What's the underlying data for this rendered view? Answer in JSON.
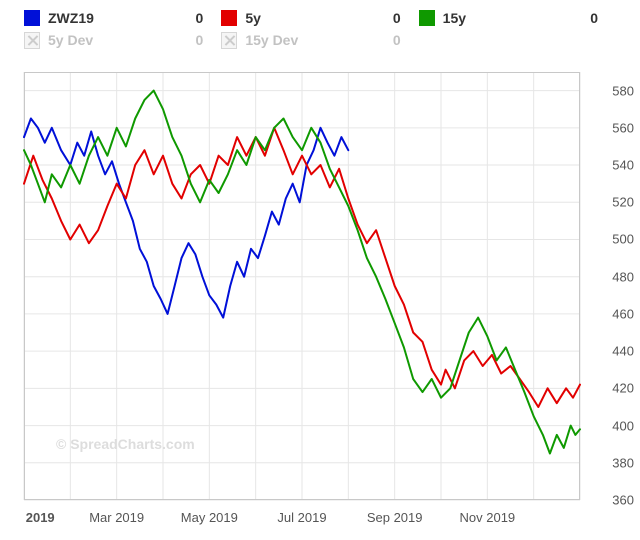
{
  "legend": {
    "row1": [
      {
        "color": "#0010d8",
        "label": "ZWZ19",
        "value": "0",
        "kind": "solid"
      },
      {
        "color": "#e20000",
        "label": "5y",
        "value": "0",
        "kind": "solid"
      },
      {
        "color": "#0f9900",
        "label": "15y",
        "value": "0",
        "kind": "solid"
      }
    ],
    "row2": [
      {
        "label_color": "#c2c2c2",
        "label": "5y Dev",
        "value": "0",
        "kind": "disabled"
      },
      {
        "label_color": "#c2c2c2",
        "label": "15y Dev",
        "value": "0",
        "kind": "disabled"
      }
    ]
  },
  "chart": {
    "background_color": "#ffffff",
    "grid_color": "#e6e6e6",
    "border_color": "#c8c8c8",
    "yaxis": {
      "min": 360,
      "max": 590,
      "ticks": [
        360,
        380,
        400,
        420,
        440,
        460,
        480,
        500,
        520,
        540,
        560,
        580
      ],
      "label_color": "#555555",
      "fontsize": 13
    },
    "xaxis": {
      "min": 0,
      "max": 12,
      "ticks": [
        {
          "x": 0.35,
          "label": "2019",
          "bold": true
        },
        {
          "x": 2,
          "label": "Mar 2019",
          "bold": false
        },
        {
          "x": 4,
          "label": "May 2019",
          "bold": false
        },
        {
          "x": 6,
          "label": "Jul 2019",
          "bold": false
        },
        {
          "x": 8,
          "label": "Sep 2019",
          "bold": false
        },
        {
          "x": 10,
          "label": "Nov 2019",
          "bold": false
        }
      ],
      "grid_at": [
        0,
        1,
        2,
        3,
        4,
        5,
        6,
        7,
        8,
        9,
        10,
        11,
        12
      ],
      "label_color": "#555555",
      "fontsize": 13
    },
    "series": [
      {
        "name": "ZWZ19",
        "color": "#0010d8",
        "width": 2,
        "data": [
          [
            0,
            555
          ],
          [
            0.15,
            565
          ],
          [
            0.3,
            560
          ],
          [
            0.45,
            552
          ],
          [
            0.6,
            560
          ],
          [
            0.8,
            548
          ],
          [
            1,
            540
          ],
          [
            1.15,
            552
          ],
          [
            1.3,
            545
          ],
          [
            1.45,
            558
          ],
          [
            1.6,
            545
          ],
          [
            1.75,
            535
          ],
          [
            1.9,
            542
          ],
          [
            2.05,
            530
          ],
          [
            2.2,
            520
          ],
          [
            2.35,
            510
          ],
          [
            2.5,
            495
          ],
          [
            2.65,
            488
          ],
          [
            2.8,
            475
          ],
          [
            2.95,
            468
          ],
          [
            3.1,
            460
          ],
          [
            3.25,
            475
          ],
          [
            3.4,
            490
          ],
          [
            3.55,
            498
          ],
          [
            3.7,
            492
          ],
          [
            3.85,
            480
          ],
          [
            4,
            470
          ],
          [
            4.15,
            465
          ],
          [
            4.3,
            458
          ],
          [
            4.45,
            475
          ],
          [
            4.6,
            488
          ],
          [
            4.75,
            480
          ],
          [
            4.9,
            495
          ],
          [
            5.05,
            490
          ],
          [
            5.2,
            502
          ],
          [
            5.35,
            515
          ],
          [
            5.5,
            508
          ],
          [
            5.65,
            522
          ],
          [
            5.8,
            530
          ],
          [
            5.95,
            520
          ],
          [
            6.1,
            540
          ],
          [
            6.25,
            548
          ],
          [
            6.4,
            560
          ],
          [
            6.55,
            552
          ],
          [
            6.7,
            545
          ],
          [
            6.85,
            555
          ],
          [
            7,
            548
          ]
        ]
      },
      {
        "name": "5y",
        "color": "#e20000",
        "width": 2,
        "data": [
          [
            0,
            530
          ],
          [
            0.2,
            545
          ],
          [
            0.4,
            532
          ],
          [
            0.6,
            522
          ],
          [
            0.8,
            510
          ],
          [
            1,
            500
          ],
          [
            1.2,
            508
          ],
          [
            1.4,
            498
          ],
          [
            1.6,
            505
          ],
          [
            1.8,
            518
          ],
          [
            2,
            530
          ],
          [
            2.2,
            522
          ],
          [
            2.4,
            540
          ],
          [
            2.6,
            548
          ],
          [
            2.8,
            535
          ],
          [
            3,
            545
          ],
          [
            3.2,
            530
          ],
          [
            3.4,
            522
          ],
          [
            3.6,
            535
          ],
          [
            3.8,
            540
          ],
          [
            4,
            530
          ],
          [
            4.2,
            545
          ],
          [
            4.4,
            540
          ],
          [
            4.6,
            555
          ],
          [
            4.8,
            545
          ],
          [
            5,
            555
          ],
          [
            5.2,
            545
          ],
          [
            5.4,
            560
          ],
          [
            5.6,
            548
          ],
          [
            5.8,
            535
          ],
          [
            6,
            545
          ],
          [
            6.2,
            535
          ],
          [
            6.4,
            540
          ],
          [
            6.6,
            528
          ],
          [
            6.8,
            538
          ],
          [
            7,
            522
          ],
          [
            7.2,
            508
          ],
          [
            7.4,
            498
          ],
          [
            7.6,
            505
          ],
          [
            7.8,
            490
          ],
          [
            8,
            475
          ],
          [
            8.2,
            465
          ],
          [
            8.4,
            450
          ],
          [
            8.6,
            445
          ],
          [
            8.8,
            430
          ],
          [
            9,
            422
          ],
          [
            9.1,
            430
          ],
          [
            9.3,
            420
          ],
          [
            9.5,
            435
          ],
          [
            9.7,
            440
          ],
          [
            9.9,
            432
          ],
          [
            10.1,
            438
          ],
          [
            10.3,
            428
          ],
          [
            10.5,
            432
          ],
          [
            10.7,
            425
          ],
          [
            10.9,
            418
          ],
          [
            11.1,
            410
          ],
          [
            11.3,
            420
          ],
          [
            11.5,
            412
          ],
          [
            11.7,
            420
          ],
          [
            11.85,
            415
          ],
          [
            12,
            422
          ]
        ]
      },
      {
        "name": "15y",
        "color": "#0f9900",
        "width": 2,
        "data": [
          [
            0,
            548
          ],
          [
            0.15,
            540
          ],
          [
            0.3,
            530
          ],
          [
            0.45,
            520
          ],
          [
            0.6,
            535
          ],
          [
            0.8,
            528
          ],
          [
            1,
            540
          ],
          [
            1.2,
            530
          ],
          [
            1.4,
            545
          ],
          [
            1.6,
            555
          ],
          [
            1.8,
            545
          ],
          [
            2,
            560
          ],
          [
            2.2,
            550
          ],
          [
            2.4,
            565
          ],
          [
            2.6,
            575
          ],
          [
            2.8,
            580
          ],
          [
            3,
            570
          ],
          [
            3.2,
            555
          ],
          [
            3.4,
            545
          ],
          [
            3.6,
            530
          ],
          [
            3.8,
            520
          ],
          [
            4,
            532
          ],
          [
            4.2,
            525
          ],
          [
            4.4,
            535
          ],
          [
            4.6,
            548
          ],
          [
            4.8,
            540
          ],
          [
            5,
            555
          ],
          [
            5.2,
            548
          ],
          [
            5.4,
            560
          ],
          [
            5.6,
            565
          ],
          [
            5.8,
            555
          ],
          [
            6,
            548
          ],
          [
            6.2,
            560
          ],
          [
            6.4,
            552
          ],
          [
            6.6,
            538
          ],
          [
            6.8,
            528
          ],
          [
            7,
            518
          ],
          [
            7.2,
            505
          ],
          [
            7.4,
            490
          ],
          [
            7.6,
            480
          ],
          [
            7.8,
            468
          ],
          [
            8,
            455
          ],
          [
            8.2,
            442
          ],
          [
            8.4,
            425
          ],
          [
            8.6,
            418
          ],
          [
            8.8,
            425
          ],
          [
            9,
            415
          ],
          [
            9.2,
            420
          ],
          [
            9.4,
            435
          ],
          [
            9.6,
            450
          ],
          [
            9.8,
            458
          ],
          [
            10,
            448
          ],
          [
            10.2,
            435
          ],
          [
            10.4,
            442
          ],
          [
            10.6,
            430
          ],
          [
            10.8,
            418
          ],
          [
            11,
            405
          ],
          [
            11.2,
            395
          ],
          [
            11.35,
            385
          ],
          [
            11.5,
            395
          ],
          [
            11.65,
            388
          ],
          [
            11.8,
            400
          ],
          [
            11.9,
            395
          ],
          [
            12,
            398
          ]
        ]
      }
    ]
  },
  "watermark": "© SpreadCharts.com"
}
